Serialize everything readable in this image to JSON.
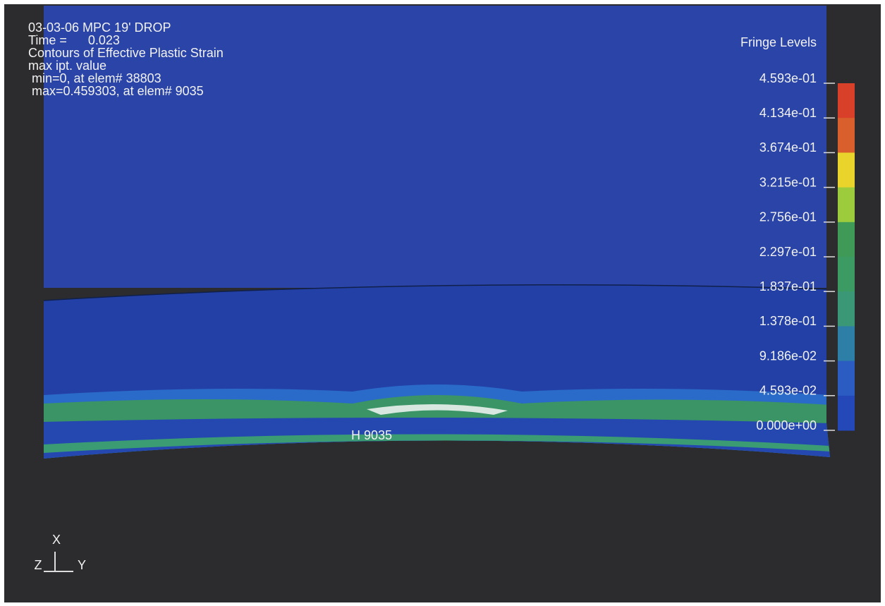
{
  "header": {
    "lines": [
      "03-03-06 MPC 19' DROP",
      "Time =      0.023",
      "Contours of Effective Plastic Strain",
      "max ipt. value",
      " min=0, at elem# 38803",
      " max=0.459303, at elem# 9035"
    ]
  },
  "legend": {
    "title": "Fringe Levels",
    "levels": [
      "4.593e-01",
      "4.134e-01",
      "3.674e-01",
      "3.215e-01",
      "2.756e-01",
      "2.297e-01",
      "1.837e-01",
      "1.378e-01",
      "9.186e-02",
      "4.593e-02",
      "0.000e+00"
    ],
    "colors": [
      "#d8402a",
      "#d9602c",
      "#e8d42a",
      "#9ccb3c",
      "#3f9a58",
      "#3c9b62",
      "#3b9877",
      "#2e7fa8",
      "#2a5cc2",
      "#2448b8"
    ]
  },
  "node_label": "H 9035",
  "triad": {
    "x": "X",
    "z": "Z",
    "y": "Y"
  }
}
